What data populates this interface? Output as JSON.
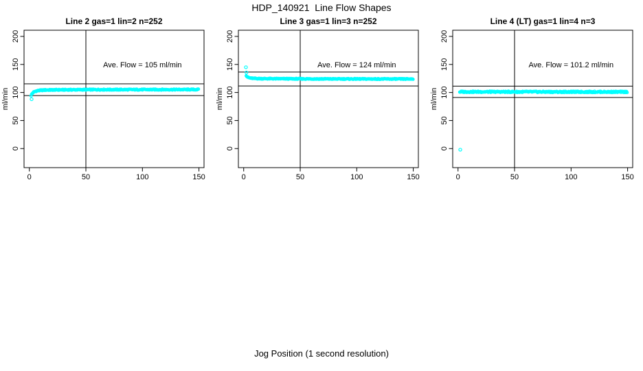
{
  "chart_data": {
    "type": "scatter",
    "title": "HDP_140921  Line Flow Shapes",
    "xlabel": "Jog Position (1 second resolution)",
    "ylabel": "ml/min",
    "point_color": "#00ffff",
    "axis_color": "#000000",
    "background": "#ffffff",
    "x_ticks": [
      0,
      50,
      100,
      150
    ],
    "y_ticks": [
      0,
      50,
      100,
      150,
      200
    ],
    "xlim": [
      -4.7,
      154.5
    ],
    "ylim": [
      -34,
      211
    ],
    "vline_x": 50,
    "grid": false,
    "legend": "none",
    "panels": [
      {
        "title": "Line 2 gas=1 lin=2 n=252",
        "annotation": "Ave. Flow =  105  ml/min",
        "ave_flow": 105,
        "n": 252,
        "gas": 1,
        "lin": 2,
        "hlines": [
          115.5,
          94.5
        ],
        "annotation_pos": {
          "x": 100,
          "y": 150
        },
        "outliers": [
          [
            2,
            88
          ]
        ],
        "profile": [
          [
            1.5,
            94.5
          ],
          [
            2,
            96.5
          ],
          [
            2.5,
            98
          ],
          [
            3,
            99.3
          ],
          [
            4,
            100.8
          ],
          [
            5,
            101.8
          ],
          [
            6,
            102.5
          ],
          [
            8,
            103.4
          ],
          [
            10,
            103.9
          ],
          [
            14,
            104.4
          ],
          [
            25,
            104.7
          ],
          [
            50,
            105
          ],
          [
            150,
            105.2
          ]
        ],
        "jitter": 0.9,
        "seed": 1
      },
      {
        "title": "Line 3 gas=1 lin=3 n=252",
        "annotation": "Ave. Flow =  124  ml/min",
        "ave_flow": 124,
        "n": 252,
        "gas": 1,
        "lin": 3,
        "hlines": [
          136.4,
          111.6
        ],
        "annotation_pos": {
          "x": 100,
          "y": 150
        },
        "outliers": [
          [
            2,
            145
          ],
          [
            2.4,
            135.5
          ]
        ],
        "profile": [
          [
            2.2,
            130.5
          ],
          [
            3,
            128.2
          ],
          [
            4,
            126.8
          ],
          [
            5,
            126.1
          ],
          [
            7,
            125.4
          ],
          [
            10,
            124.9
          ],
          [
            20,
            124.6
          ],
          [
            60,
            124.2
          ],
          [
            150,
            124
          ]
        ],
        "jitter": 0.8,
        "seed": 2
      },
      {
        "title": "Line 4 (LT) gas=1 lin=4 n=3",
        "annotation": "Ave. Flow =  101.2  ml/min",
        "ave_flow": 101.2,
        "n": 3,
        "gas": 1,
        "lin": 4,
        "hlines": [
          111.3,
          91.1
        ],
        "annotation_pos": {
          "x": 100,
          "y": 150
        },
        "outliers": [
          [
            2,
            -2
          ]
        ],
        "profile": [
          [
            1.5,
            101.2
          ],
          [
            40,
            101.1
          ],
          [
            150,
            101
          ]
        ],
        "jitter": 1.2,
        "seed": 3
      }
    ]
  }
}
